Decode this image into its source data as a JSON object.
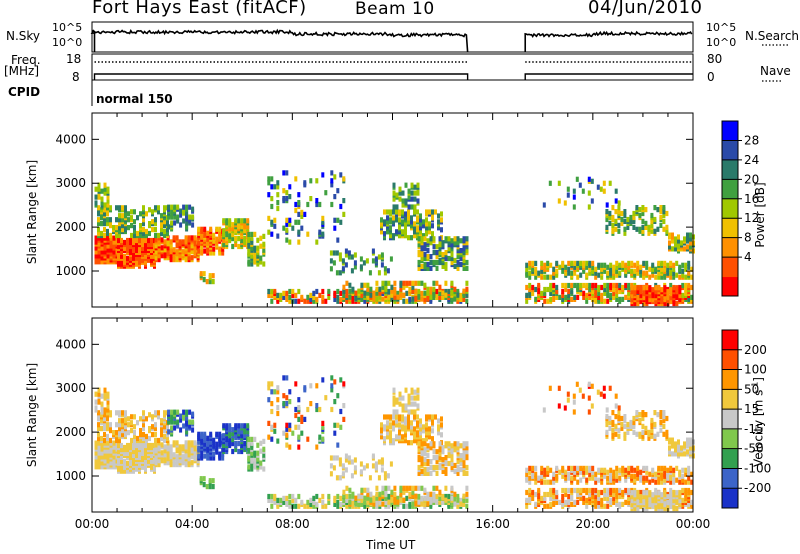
{
  "header": {
    "station": "Fort Hays East (fitACF)",
    "beam": "Beam 10",
    "date": "04/Jun/2010"
  },
  "top_panels": {
    "nsky_label": "N.Sky",
    "nsky_ticks": [
      "10^5",
      "10^0"
    ],
    "nsearch_label": "N.Search",
    "nsearch_ticks": [
      "10^5",
      "10^0"
    ],
    "freq_label": "Freq.",
    "freq_unit": "[MHz]",
    "freq_ticks": [
      "18",
      "8"
    ],
    "nave_label": "Nave",
    "nave_ticks": [
      "80",
      "0"
    ],
    "cpid_label": "CPID",
    "cpid_value": "normal 150"
  },
  "x_axis": {
    "label": "Time UT",
    "ticks": [
      "00:00",
      "04:00",
      "08:00",
      "12:00",
      "16:00",
      "20:00",
      "00:00"
    ]
  },
  "power_colorbar": {
    "label": "Power [dB]",
    "ticks": [
      "28",
      "24",
      "20",
      "16",
      "12",
      "8",
      "4"
    ],
    "colors": [
      "#0000ff",
      "#2a4aa8",
      "#2a7a6a",
      "#40a040",
      "#a0c800",
      "#f0c000",
      "#ff9000",
      "#ff5000",
      "#ff0000"
    ]
  },
  "velocity_colorbar": {
    "label": "Velocity [m s",
    "label_sup": "-1",
    "label_end": "]",
    "ticks": [
      "200",
      "100",
      "50",
      "15",
      "-15",
      "-50",
      "-100",
      "-200"
    ],
    "colors": [
      "#1a32c8",
      "#3c64c8",
      "#32a050",
      "#80c84c",
      "#c8c8c8",
      "#f0c83c",
      "#ff9600",
      "#ff5000",
      "#ff0000"
    ]
  },
  "chart_data": [
    {
      "type": "heatmap",
      "title": "Power",
      "xlabel": "Time UT",
      "ylabel": "Slant Range [km]",
      "x_range_hours": [
        0,
        24
      ],
      "ylim": [
        180,
        4600
      ],
      "y_ticks": [
        1000,
        2000,
        3000,
        4000
      ],
      "colorbar_range_db": [
        0,
        32
      ],
      "data_gap_hours": [
        15.0,
        17.3
      ]
    },
    {
      "type": "heatmap",
      "title": "Velocity",
      "xlabel": "Time UT",
      "ylabel": "Slant Range [km]",
      "x_range_hours": [
        0,
        24
      ],
      "ylim": [
        180,
        4600
      ],
      "y_ticks": [
        1000,
        2000,
        3000,
        4000
      ],
      "colorbar_range_ms": [
        -250,
        250
      ],
      "data_gap_hours": [
        15.0,
        17.3
      ]
    }
  ]
}
